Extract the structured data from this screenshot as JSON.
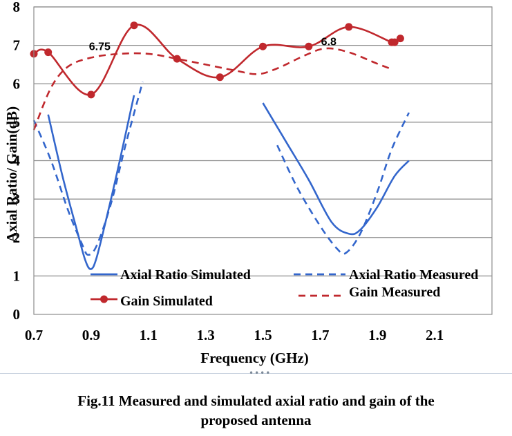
{
  "chart_data": {
    "type": "line",
    "title": "",
    "xlabel": "Frequency (GHz)",
    "ylabel": "Axial Ratio/ Gain(dB)",
    "xlim": [
      0.7,
      2.3
    ],
    "ylim": [
      0,
      8
    ],
    "xticks": [
      "0.7",
      "0.9",
      "1.1",
      "1.3",
      "1.5",
      "1.7",
      "1.9",
      "2.1"
    ],
    "yticks": [
      "0",
      "1",
      "2",
      "3",
      "4",
      "5",
      "6",
      "7",
      "8"
    ],
    "grid": "horizontal",
    "legend": "inside-bottom",
    "series": [
      {
        "name": "Axial Ratio Simulated",
        "color": "#3366cc",
        "style": "solid",
        "markers": false,
        "segments": [
          [
            [
              0.75,
              5.2
            ],
            [
              0.8,
              3.6
            ],
            [
              0.85,
              2.2
            ],
            [
              0.88,
              1.4
            ],
            [
              0.9,
              1.18
            ],
            [
              0.92,
              1.5
            ],
            [
              0.96,
              2.7
            ],
            [
              1.0,
              4.0
            ],
            [
              1.05,
              5.7
            ]
          ],
          [
            [
              1.5,
              5.5
            ],
            [
              1.58,
              4.5
            ],
            [
              1.66,
              3.5
            ],
            [
              1.74,
              2.4
            ],
            [
              1.8,
              2.1
            ],
            [
              1.84,
              2.2
            ],
            [
              1.9,
              2.8
            ],
            [
              1.96,
              3.6
            ],
            [
              2.01,
              4.0
            ]
          ]
        ]
      },
      {
        "name": "Axial Ratio Measured",
        "color": "#3366cc",
        "style": "dashed",
        "markers": false,
        "segments": [
          [
            [
              0.7,
              5.05
            ],
            [
              0.76,
              4.0
            ],
            [
              0.82,
              2.7
            ],
            [
              0.87,
              1.8
            ],
            [
              0.89,
              1.55
            ],
            [
              0.92,
              1.8
            ],
            [
              0.97,
              2.9
            ],
            [
              1.02,
              4.4
            ],
            [
              1.08,
              6.05
            ]
          ],
          [
            [
              1.55,
              4.4
            ],
            [
              1.62,
              3.3
            ],
            [
              1.7,
              2.3
            ],
            [
              1.76,
              1.7
            ],
            [
              1.79,
              1.6
            ],
            [
              1.84,
              2.1
            ],
            [
              1.9,
              3.2
            ],
            [
              1.95,
              4.3
            ],
            [
              2.01,
              5.25
            ]
          ]
        ]
      },
      {
        "name": "Gain Simulated",
        "color": "#c0282d",
        "style": "solid",
        "markers": true,
        "points": [
          [
            0.7,
            6.78
          ],
          [
            0.75,
            6.82
          ],
          [
            0.9,
            5.72
          ],
          [
            1.05,
            7.52
          ],
          [
            1.2,
            6.65
          ],
          [
            1.35,
            6.17
          ],
          [
            1.5,
            6.97
          ],
          [
            1.66,
            6.97
          ],
          [
            1.8,
            7.48
          ],
          [
            1.95,
            7.08
          ],
          [
            1.96,
            7.08
          ],
          [
            1.98,
            7.18
          ]
        ]
      },
      {
        "name": "Gain Measured",
        "color": "#c0282d",
        "style": "dashed",
        "markers": false,
        "points": [
          [
            0.7,
            4.8
          ],
          [
            0.76,
            5.9
          ],
          [
            0.82,
            6.45
          ],
          [
            0.9,
            6.68
          ],
          [
            1.0,
            6.78
          ],
          [
            1.1,
            6.78
          ],
          [
            1.2,
            6.65
          ],
          [
            1.3,
            6.5
          ],
          [
            1.4,
            6.35
          ],
          [
            1.48,
            6.25
          ],
          [
            1.55,
            6.4
          ],
          [
            1.65,
            6.75
          ],
          [
            1.72,
            6.92
          ],
          [
            1.8,
            6.82
          ],
          [
            1.9,
            6.52
          ],
          [
            1.95,
            6.38
          ]
        ]
      }
    ],
    "annotations": [
      {
        "text": "6.75",
        "x": 0.93,
        "y": 6.88
      },
      {
        "text": "6.8",
        "x": 1.73,
        "y": 7.0
      }
    ]
  },
  "caption": {
    "line1": "Fig.11 Measured and simulated axial ratio and gain of the",
    "line2": "proposed antenna"
  },
  "divider_dots": "••••"
}
